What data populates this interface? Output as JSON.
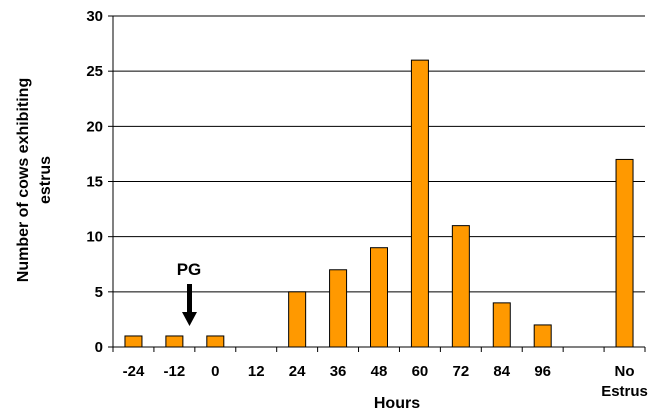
{
  "chart_data": {
    "type": "bar",
    "categories": [
      "-24",
      "-12",
      "0",
      "12",
      "24",
      "36",
      "48",
      "60",
      "72",
      "84",
      "96",
      "",
      "No Estrus"
    ],
    "category_lines": [
      [
        "-24"
      ],
      [
        "-12"
      ],
      [
        "0"
      ],
      [
        "12"
      ],
      [
        "24"
      ],
      [
        "36"
      ],
      [
        "48"
      ],
      [
        "60"
      ],
      [
        "72"
      ],
      [
        "84"
      ],
      [
        "96"
      ],
      [
        ""
      ],
      [
        "No",
        "Estrus"
      ]
    ],
    "values": [
      1,
      1,
      1,
      0,
      5,
      7,
      9,
      26,
      11,
      4,
      2,
      0,
      17
    ],
    "xlabel": "Hours",
    "ylabel_lines": [
      "Number of cows exhibiting",
      "estrus"
    ],
    "ylim": [
      0,
      30
    ],
    "yticks": [
      0,
      5,
      10,
      15,
      20,
      25,
      30
    ],
    "grid": true,
    "annotation": {
      "text": "PG",
      "position": "arrow pointing down between -12 and 0"
    },
    "bar_color": "#FF9900",
    "bar_edge_color": "#000000",
    "grid_color": "#000000"
  }
}
